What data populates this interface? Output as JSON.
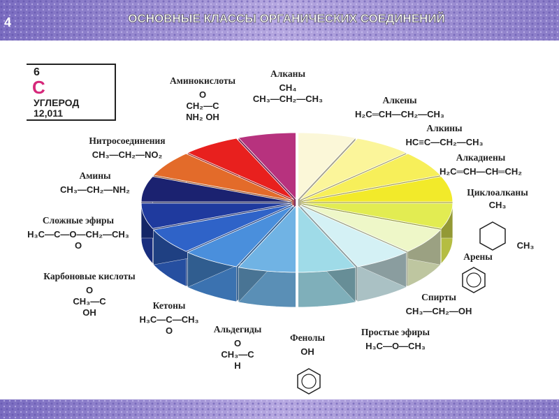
{
  "header": {
    "page": "4",
    "title": "ОСНОВНЫЕ КЛАССЫ ОРГАНИЧЕСКИХ СОЕДИНЕНИЙ"
  },
  "element": {
    "number": "6",
    "symbol": "C",
    "name": "УГЛЕРОД",
    "mass": "12,011"
  },
  "classes": [
    {
      "name": "Алканы",
      "formula": [
        "CH₄",
        "CH₃—CH₂—CH₃"
      ]
    },
    {
      "name": "Алкены",
      "formula": [
        "H₂C═CH—CH₂—CH₃"
      ]
    },
    {
      "name": "Алкины",
      "formula": [
        "HC≡C—CH₂—CH₃"
      ]
    },
    {
      "name": "Алкадиены",
      "formula": [
        "H₂C═CH—CH═CH₂"
      ]
    },
    {
      "name": "Циклоалканы",
      "formula": [
        "CH₃",
        "CH₃"
      ]
    },
    {
      "name": "Арены"
    },
    {
      "name": "Спирты",
      "formula": [
        "CH₃—CH₂—OH"
      ]
    },
    {
      "name": "Простые эфиры",
      "formula": [
        "H₃C—O—CH₃"
      ]
    },
    {
      "name": "Фенолы",
      "formula": [
        "OH"
      ]
    },
    {
      "name": "Альдегиды",
      "formula": [
        "O",
        "CH₃—C",
        "H"
      ]
    },
    {
      "name": "Кетоны",
      "formula": [
        "H₃C—C—CH₃",
        "O"
      ]
    },
    {
      "name": "Карбоновые кислоты",
      "formula": [
        "O",
        "CH₃—C",
        "OH"
      ]
    },
    {
      "name": "Сложные эфиры",
      "formula": [
        "H₃C—C—O—CH₂—CH₃",
        "O"
      ]
    },
    {
      "name": "Амины",
      "formula": [
        "CH₃—CH₂—NH₂"
      ]
    },
    {
      "name": "Нитросоединения",
      "formula": [
        "CH₃—CH₂—NO₂"
      ]
    },
    {
      "name": "Аминокислоты",
      "formula": [
        "O",
        "CH₂—C",
        "NH₂   OH"
      ]
    }
  ]
}
